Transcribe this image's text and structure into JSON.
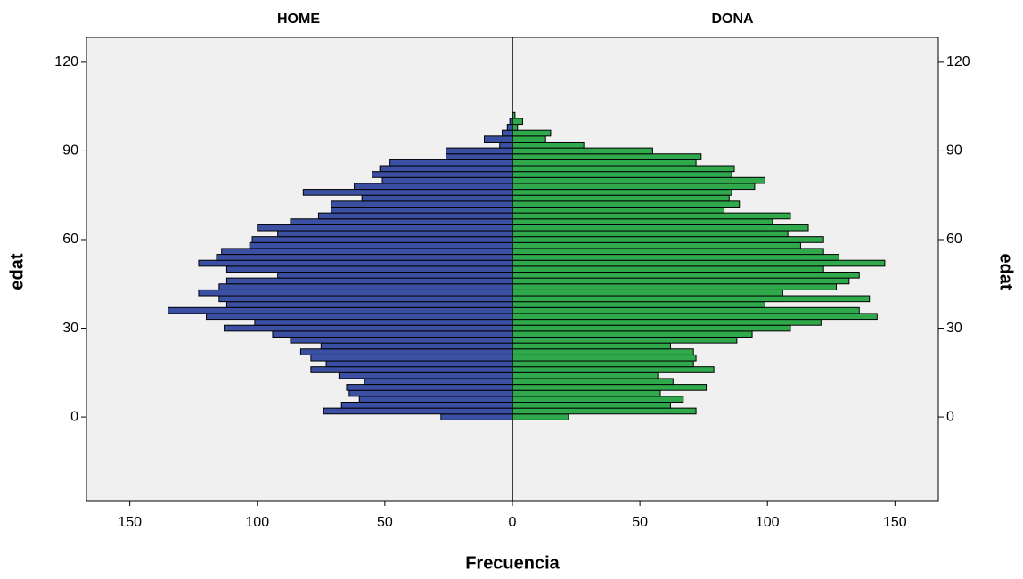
{
  "chart_data": {
    "type": "pyramid",
    "y_label": "edat",
    "x_label": "Frecuencia",
    "x": [
      0,
      2,
      4,
      6,
      8,
      10,
      12,
      14,
      16,
      18,
      20,
      22,
      24,
      26,
      28,
      30,
      32,
      34,
      36,
      38,
      40,
      42,
      44,
      46,
      48,
      50,
      52,
      54,
      56,
      58,
      60,
      62,
      64,
      66,
      68,
      70,
      72,
      74,
      76,
      78,
      80,
      82,
      84,
      86,
      88,
      90,
      92,
      94,
      96,
      98,
      100,
      102
    ],
    "series": [
      {
        "name": "HOME",
        "color": "#3b4fa3",
        "values": [
          28,
          74,
          67,
          60,
          64,
          65,
          58,
          68,
          79,
          73,
          79,
          83,
          75,
          87,
          94,
          113,
          101,
          120,
          135,
          112,
          115,
          123,
          115,
          112,
          92,
          112,
          123,
          116,
          114,
          103,
          102,
          92,
          100,
          87,
          76,
          71,
          71,
          59,
          82,
          62,
          51,
          55,
          52,
          48,
          26,
          26,
          5,
          11,
          4,
          2,
          1,
          0
        ]
      },
      {
        "name": "DONA",
        "color": "#2fa94c",
        "values": [
          22,
          72,
          62,
          67,
          58,
          76,
          63,
          57,
          79,
          71,
          72,
          71,
          62,
          88,
          94,
          109,
          121,
          143,
          136,
          99,
          140,
          106,
          127,
          132,
          136,
          122,
          146,
          128,
          122,
          113,
          122,
          108,
          116,
          102,
          109,
          83,
          89,
          85,
          86,
          95,
          99,
          86,
          87,
          72,
          74,
          55,
          28,
          13,
          15,
          2,
          4,
          1
        ]
      }
    ],
    "ylim": [
      -28.3,
      128.4
    ],
    "yticks": [
      0,
      30,
      60,
      90,
      120
    ],
    "xlim": [
      0,
      167
    ],
    "xticks": [
      0,
      50,
      100,
      150
    ]
  }
}
